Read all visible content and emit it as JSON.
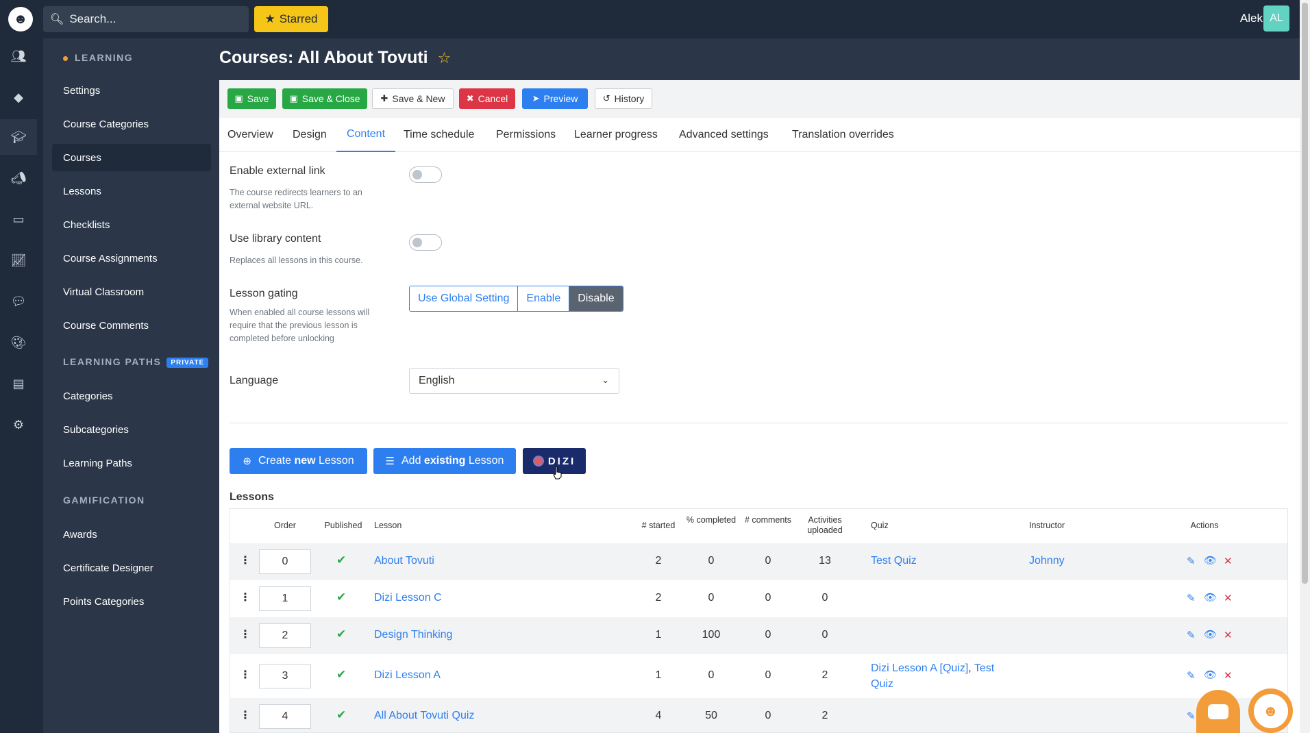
{
  "topbar": {
    "search_placeholder": "Search...",
    "starred_label": "Starred",
    "user_name": "Alek",
    "avatar_initials": "AL"
  },
  "rail": {
    "items": [
      "users-icon",
      "cube-icon",
      "graduation-cap-icon",
      "megaphone-icon",
      "ticket-icon",
      "chart-icon",
      "chat-icon",
      "palette-icon",
      "calendar-icon",
      "gear-icon"
    ],
    "active_index": 2
  },
  "sidebar": {
    "learning_title": "LEARNING",
    "learning_items": [
      "Settings",
      "Course Categories",
      "Courses",
      "Lessons",
      "Checklists",
      "Course Assignments",
      "Virtual Classroom",
      "Course Comments"
    ],
    "learning_paths_title": "LEARNING PATHS",
    "private_badge": "PRIVATE",
    "learning_paths_items": [
      "Categories",
      "Subcategories",
      "Learning Paths"
    ],
    "gamification_title": "GAMIFICATION",
    "gamification_items": [
      "Awards",
      "Certificate Designer",
      "Points Categories"
    ]
  },
  "page": {
    "title": "Courses: All About Tovuti"
  },
  "toolbar": {
    "save": "Save",
    "save_close": "Save & Close",
    "save_new": "Save & New",
    "cancel": "Cancel",
    "preview": "Preview",
    "history": "History"
  },
  "tabs": [
    "Overview",
    "Design",
    "Content",
    "Time schedule",
    "Permissions",
    "Learner progress",
    "Advanced settings",
    "Translation overrides"
  ],
  "active_tab": "Content",
  "form": {
    "external_link_label": "Enable external link",
    "external_link_desc": "The course redirects learners to an external website URL.",
    "external_link_on": false,
    "library_label": "Use library content",
    "library_desc": "Replaces all lessons in this course.",
    "library_on": false,
    "gating_label": "Lesson gating",
    "gating_desc": "When enabled all course lessons will require that the previous lesson is completed before unlocking",
    "gating_options": [
      "Use Global Setting",
      "Enable",
      "Disable"
    ],
    "gating_selected": "Disable",
    "language_label": "Language",
    "language_value": "English"
  },
  "actions": {
    "create_prefix": "Create ",
    "create_bold": "new",
    "create_suffix": " Lesson",
    "add_prefix": "Add ",
    "add_bold": "existing",
    "add_suffix": " Lesson",
    "dizi_label": "DIZI"
  },
  "lessons": {
    "title": "Lessons",
    "headers": {
      "order": "Order",
      "published": "Published",
      "lesson": "Lesson",
      "started": "# started",
      "completed": "% completed",
      "comments": "# comments",
      "activities": "Activities uploaded",
      "quiz": "Quiz",
      "instructor": "Instructor",
      "actions": "Actions"
    },
    "rows": [
      {
        "order": "0",
        "lesson": "About Tovuti",
        "started": "2",
        "completed": "0",
        "comments": "0",
        "activities": "13",
        "quiz": "Test Quiz",
        "instructor": "Johnny"
      },
      {
        "order": "1",
        "lesson": "Dizi Lesson C",
        "started": "2",
        "completed": "0",
        "comments": "0",
        "activities": "0",
        "quiz": "",
        "instructor": ""
      },
      {
        "order": "2",
        "lesson": "Design Thinking",
        "started": "1",
        "completed": "100",
        "comments": "0",
        "activities": "0",
        "quiz": "",
        "instructor": ""
      },
      {
        "order": "3",
        "lesson": "Dizi Lesson A",
        "started": "1",
        "completed": "0",
        "comments": "0",
        "activities": "2",
        "quiz": "Dizi Lesson A [Quiz]",
        "quiz_sep": ", ",
        "quiz2": "Test Quiz",
        "instructor": ""
      },
      {
        "order": "4",
        "lesson": "All About Tovuti Quiz",
        "started": "4",
        "completed": "50",
        "comments": "0",
        "activities": "2",
        "quiz": "",
        "instructor": ""
      }
    ]
  }
}
